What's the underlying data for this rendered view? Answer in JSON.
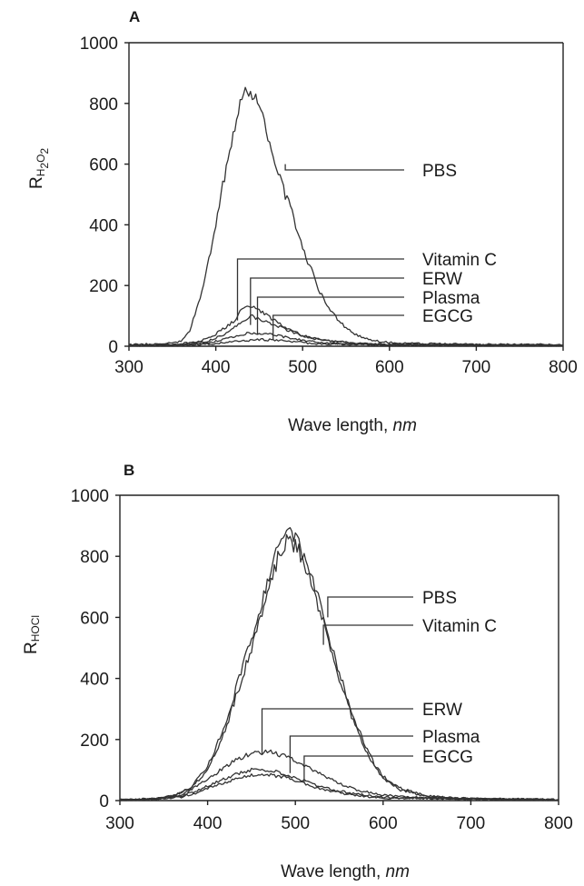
{
  "chart_data": [
    {
      "panel": "A",
      "type": "line",
      "ylabel_main": "R",
      "ylabel_sub": "H",
      "ylabel_sub2": "2",
      "ylabel_sub3": "O",
      "ylabel_sub4": "2",
      "xlabel_text": "Wave length, ",
      "xlabel_unit": "nm",
      "xlim": [
        300,
        800
      ],
      "ylim": [
        0,
        1000
      ],
      "xticks": [
        300,
        400,
        500,
        600,
        700,
        800
      ],
      "yticks": [
        0,
        200,
        400,
        600,
        800,
        1000
      ],
      "series": [
        {
          "name": "PBS",
          "points": [
            [
              300,
              5
            ],
            [
              340,
              8
            ],
            [
              360,
              15
            ],
            [
              370,
              50
            ],
            [
              380,
              140
            ],
            [
              390,
              260
            ],
            [
              400,
              400
            ],
            [
              410,
              560
            ],
            [
              420,
              700
            ],
            [
              430,
              810
            ],
            [
              435,
              860
            ],
            [
              440,
              840
            ],
            [
              450,
              790
            ],
            [
              460,
              700
            ],
            [
              470,
              600
            ],
            [
              480,
              500
            ],
            [
              490,
              420
            ],
            [
              500,
              320
            ],
            [
              510,
              250
            ],
            [
              520,
              180
            ],
            [
              530,
              130
            ],
            [
              540,
              90
            ],
            [
              550,
              60
            ],
            [
              560,
              40
            ],
            [
              580,
              20
            ],
            [
              600,
              12
            ],
            [
              650,
              8
            ],
            [
              700,
              6
            ],
            [
              800,
              5
            ]
          ],
          "label_at": [
            480,
            600
          ]
        },
        {
          "name": "Vitamin C",
          "points": [
            [
              300,
              3
            ],
            [
              350,
              5
            ],
            [
              380,
              15
            ],
            [
              400,
              40
            ],
            [
              420,
              80
            ],
            [
              430,
              120
            ],
            [
              440,
              135
            ],
            [
              450,
              120
            ],
            [
              460,
              100
            ],
            [
              470,
              80
            ],
            [
              480,
              60
            ],
            [
              500,
              35
            ],
            [
              520,
              20
            ],
            [
              560,
              10
            ],
            [
              600,
              6
            ],
            [
              700,
              4
            ],
            [
              800,
              3
            ]
          ],
          "label_at": [
            425,
            85
          ]
        },
        {
          "name": "ERW",
          "points": [
            [
              300,
              3
            ],
            [
              360,
              5
            ],
            [
              390,
              15
            ],
            [
              410,
              40
            ],
            [
              430,
              80
            ],
            [
              440,
              100
            ],
            [
              450,
              90
            ],
            [
              460,
              80
            ],
            [
              480,
              55
            ],
            [
              500,
              35
            ],
            [
              530,
              18
            ],
            [
              560,
              10
            ],
            [
              600,
              5
            ],
            [
              800,
              3
            ]
          ],
          "label_at": [
            440,
            70
          ]
        },
        {
          "name": "Plasma",
          "points": [
            [
              300,
              2
            ],
            [
              360,
              4
            ],
            [
              390,
              10
            ],
            [
              420,
              30
            ],
            [
              440,
              45
            ],
            [
              460,
              40
            ],
            [
              480,
              30
            ],
            [
              500,
              20
            ],
            [
              530,
              10
            ],
            [
              600,
              4
            ],
            [
              800,
              2
            ]
          ],
          "label_at": [
            448,
            40
          ]
        },
        {
          "name": "EGCG",
          "points": [
            [
              300,
              2
            ],
            [
              360,
              3
            ],
            [
              400,
              8
            ],
            [
              430,
              18
            ],
            [
              450,
              22
            ],
            [
              470,
              20
            ],
            [
              490,
              14
            ],
            [
              520,
              8
            ],
            [
              600,
              3
            ],
            [
              800,
              2
            ]
          ],
          "label_at": [
            466,
            20
          ]
        }
      ],
      "labels_text_order": [
        "PBS",
        "Vitamin C",
        "ERW",
        "Plasma",
        "EGCG"
      ]
    },
    {
      "panel": "B",
      "type": "line",
      "ylabel_main": "R",
      "ylabel_sub": "HOCl",
      "xlabel_text": "Wave length, ",
      "xlabel_unit": "nm",
      "xlim": [
        300,
        800
      ],
      "ylim": [
        0,
        1000
      ],
      "xticks": [
        300,
        400,
        500,
        600,
        700,
        800
      ],
      "yticks": [
        0,
        200,
        400,
        600,
        800,
        1000
      ],
      "series": [
        {
          "name": "PBS",
          "points": [
            [
              300,
              2
            ],
            [
              340,
              5
            ],
            [
              360,
              15
            ],
            [
              380,
              40
            ],
            [
              400,
              110
            ],
            [
              420,
              250
            ],
            [
              440,
              440
            ],
            [
              460,
              630
            ],
            [
              470,
              740
            ],
            [
              480,
              830
            ],
            [
              490,
              880
            ],
            [
              500,
              860
            ],
            [
              510,
              800
            ],
            [
              520,
              720
            ],
            [
              530,
              620
            ],
            [
              540,
              520
            ],
            [
              550,
              420
            ],
            [
              560,
              330
            ],
            [
              570,
              250
            ],
            [
              580,
              180
            ],
            [
              590,
              120
            ],
            [
              600,
              80
            ],
            [
              620,
              40
            ],
            [
              650,
              15
            ],
            [
              700,
              6
            ],
            [
              800,
              3
            ]
          ],
          "label_at": [
            537,
            600
          ]
        },
        {
          "name": "Vitamin C",
          "points": [
            [
              300,
              2
            ],
            [
              340,
              5
            ],
            [
              360,
              14
            ],
            [
              380,
              38
            ],
            [
              400,
              100
            ],
            [
              420,
              230
            ],
            [
              440,
              410
            ],
            [
              460,
              590
            ],
            [
              470,
              700
            ],
            [
              480,
              790
            ],
            [
              490,
              850
            ],
            [
              500,
              840
            ],
            [
              510,
              780
            ],
            [
              520,
              700
            ],
            [
              530,
              600
            ],
            [
              540,
              500
            ],
            [
              550,
              400
            ],
            [
              560,
              310
            ],
            [
              570,
              230
            ],
            [
              580,
              165
            ],
            [
              590,
              110
            ],
            [
              600,
              75
            ],
            [
              620,
              35
            ],
            [
              650,
              12
            ],
            [
              700,
              5
            ],
            [
              800,
              3
            ]
          ],
          "label_at": [
            532,
            510
          ]
        },
        {
          "name": "ERW",
          "points": [
            [
              300,
              2
            ],
            [
              340,
              6
            ],
            [
              370,
              20
            ],
            [
              390,
              50
            ],
            [
              410,
              90
            ],
            [
              430,
              130
            ],
            [
              450,
              155
            ],
            [
              470,
              160
            ],
            [
              490,
              145
            ],
            [
              510,
              115
            ],
            [
              530,
              85
            ],
            [
              550,
              55
            ],
            [
              570,
              35
            ],
            [
              600,
              18
            ],
            [
              650,
              8
            ],
            [
              800,
              3
            ]
          ],
          "label_at": [
            462,
            150
          ]
        },
        {
          "name": "Plasma",
          "points": [
            [
              300,
              2
            ],
            [
              340,
              5
            ],
            [
              370,
              15
            ],
            [
              390,
              35
            ],
            [
              410,
              60
            ],
            [
              430,
              85
            ],
            [
              450,
              100
            ],
            [
              470,
              100
            ],
            [
              490,
              85
            ],
            [
              510,
              65
            ],
            [
              530,
              45
            ],
            [
              560,
              25
            ],
            [
              600,
              10
            ],
            [
              800,
              3
            ]
          ],
          "label_at": [
            494,
            90
          ]
        },
        {
          "name": "EGCG",
          "points": [
            [
              300,
              2
            ],
            [
              340,
              4
            ],
            [
              370,
              12
            ],
            [
              390,
              28
            ],
            [
              410,
              50
            ],
            [
              430,
              70
            ],
            [
              450,
              82
            ],
            [
              470,
              85
            ],
            [
              490,
              75
            ],
            [
              510,
              55
            ],
            [
              530,
              38
            ],
            [
              560,
              20
            ],
            [
              600,
              8
            ],
            [
              800,
              2
            ]
          ],
          "label_at": [
            510,
            60
          ]
        }
      ],
      "labels_text_order": [
        "PBS",
        "Vitamin C",
        "ERW",
        "Plasma",
        "EGCG"
      ]
    }
  ]
}
